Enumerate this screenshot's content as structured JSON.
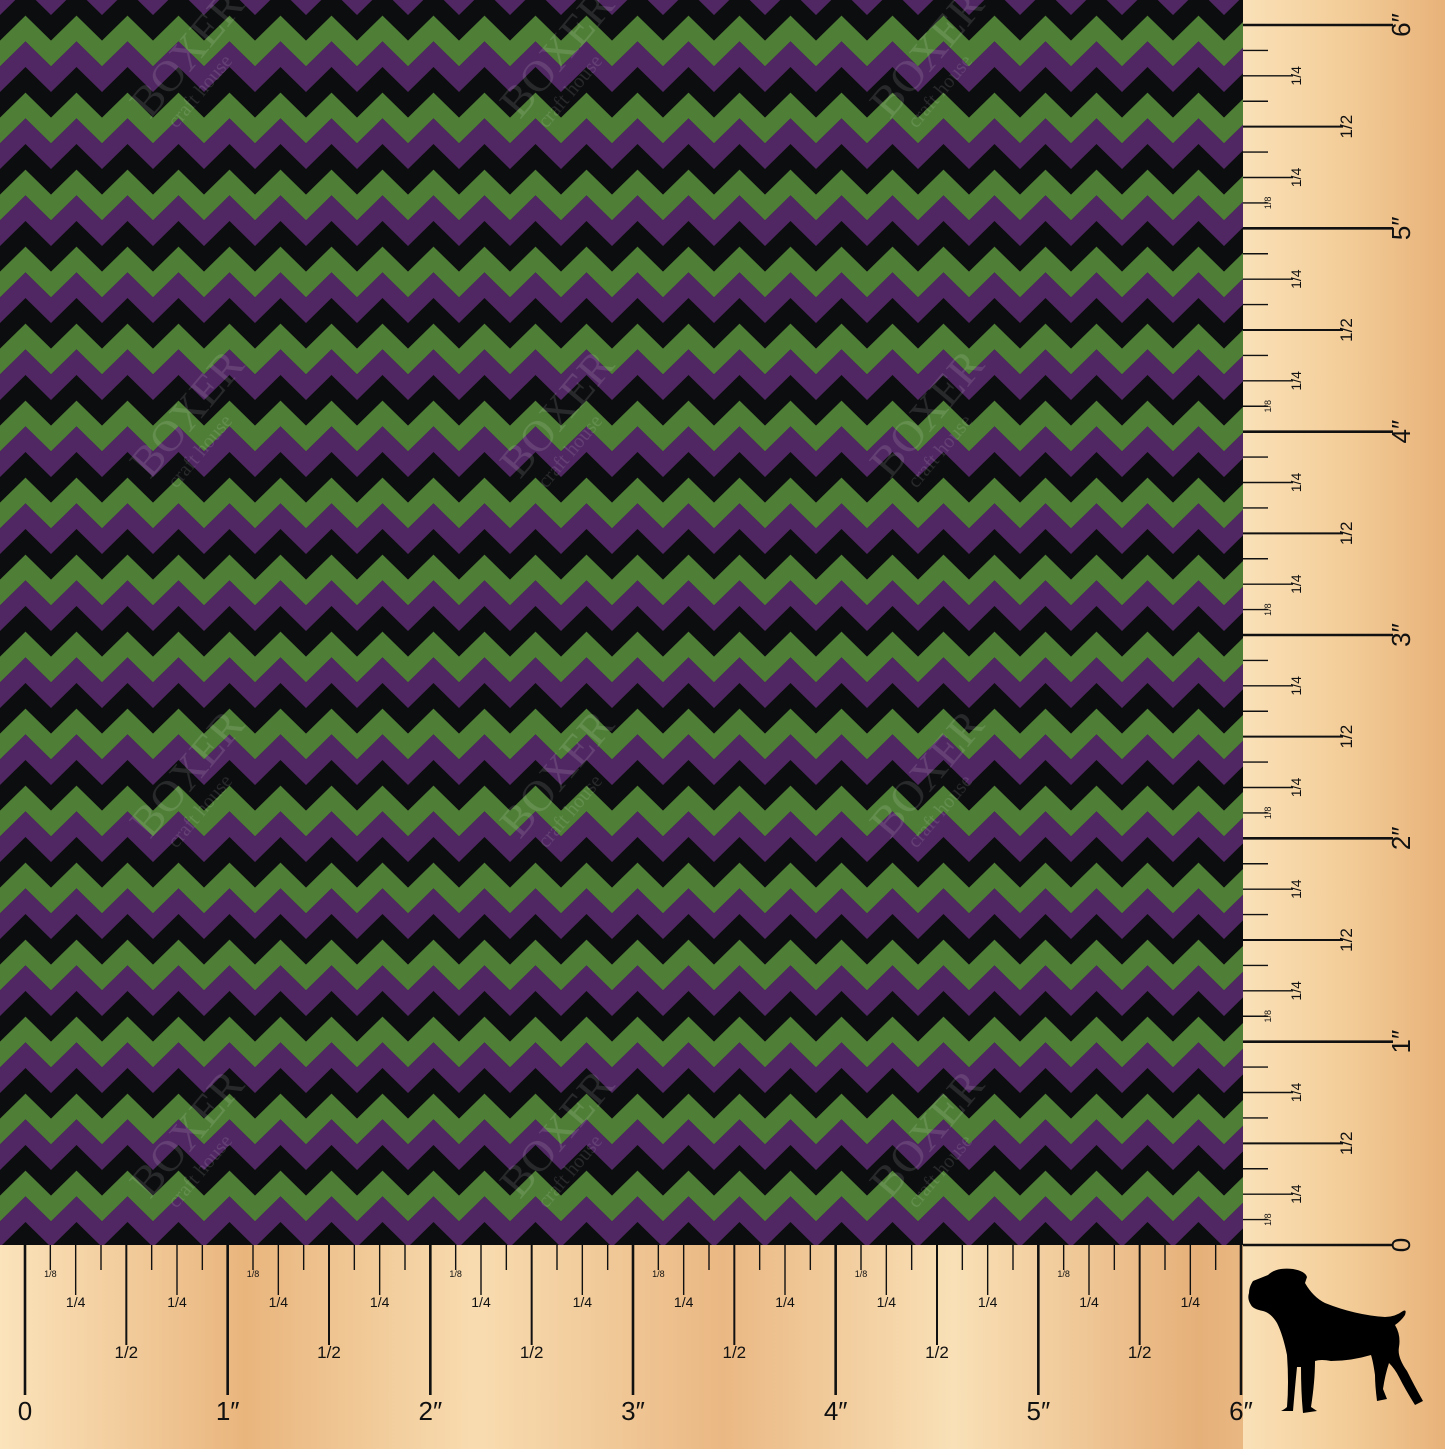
{
  "pattern": {
    "type": "chevron",
    "colors": {
      "green": "#4f7f37",
      "purple": "#502763",
      "black": "#0c0d0e"
    },
    "band_order": [
      "black",
      "green",
      "purple"
    ]
  },
  "watermark": {
    "brand": "BOXER",
    "tagline": "craft house"
  },
  "ruler": {
    "unit": "inch",
    "length_inches": 6,
    "inch_labels": [
      "0",
      "1″",
      "2″",
      "3″",
      "4″",
      "5″",
      "6″"
    ],
    "fraction_labels": {
      "eighth": "1/8",
      "quarter": "1/4",
      "half": "1/2"
    },
    "colors": {
      "light": "#fbe3bb",
      "dark": "#e8b27a",
      "ink": "#111111"
    }
  },
  "logo": {
    "icon": "boxer-dog-silhouette-icon"
  }
}
